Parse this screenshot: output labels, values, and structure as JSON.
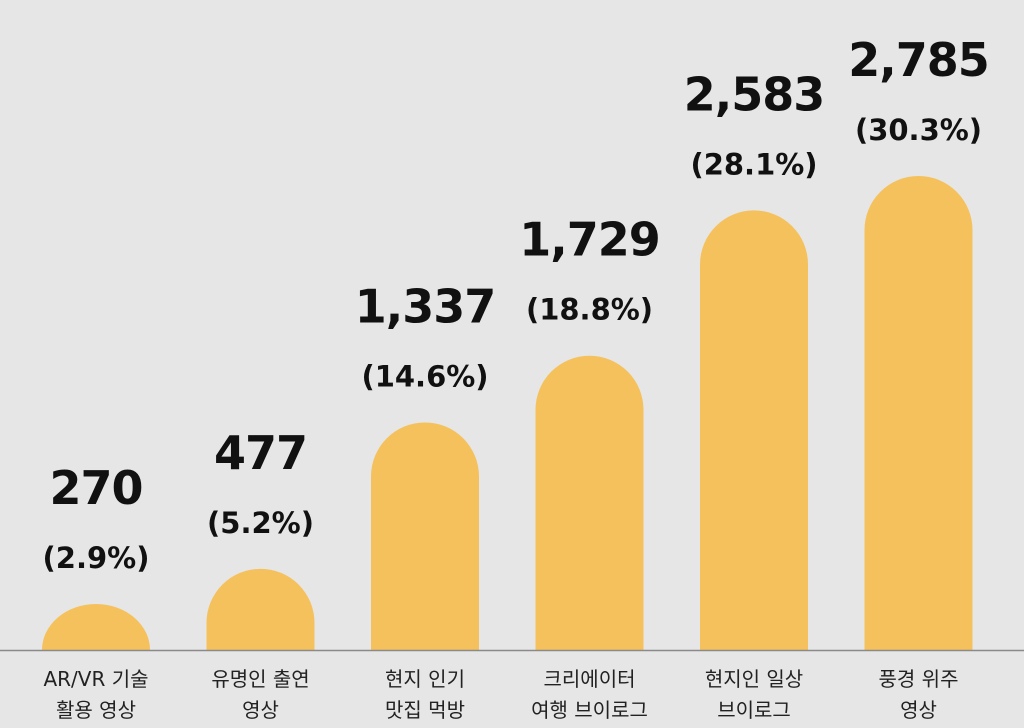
{
  "colors": {
    "background": "#e6e6e6",
    "bar": "#f5c15c",
    "baseline": "#8a8a8a",
    "text": "#111111"
  },
  "chart_data": {
    "type": "bar",
    "title": "",
    "xlabel": "",
    "ylabel": "",
    "ylim": [
      0,
      3000
    ],
    "grid": false,
    "categories": [
      [
        "AR/VR 기술",
        "활용 영상"
      ],
      [
        "유명인 출연",
        "영상"
      ],
      [
        "현지 인기",
        "맛집 먹방"
      ],
      [
        "크리에이터",
        "여행 브이로그"
      ],
      [
        "현지인 일상",
        "브이로그"
      ],
      [
        "풍경 위주",
        "영상"
      ]
    ],
    "values": [
      270,
      477,
      1337,
      1729,
      2583,
      2785
    ],
    "value_labels": [
      "270",
      "477",
      "1,337",
      "1,729",
      "2,583",
      "2,785"
    ],
    "percent_labels": [
      "(2.9%)",
      "(5.2%)",
      "(14.6%)",
      "(18.8%)",
      "(28.1%)",
      "(30.3%)"
    ]
  }
}
